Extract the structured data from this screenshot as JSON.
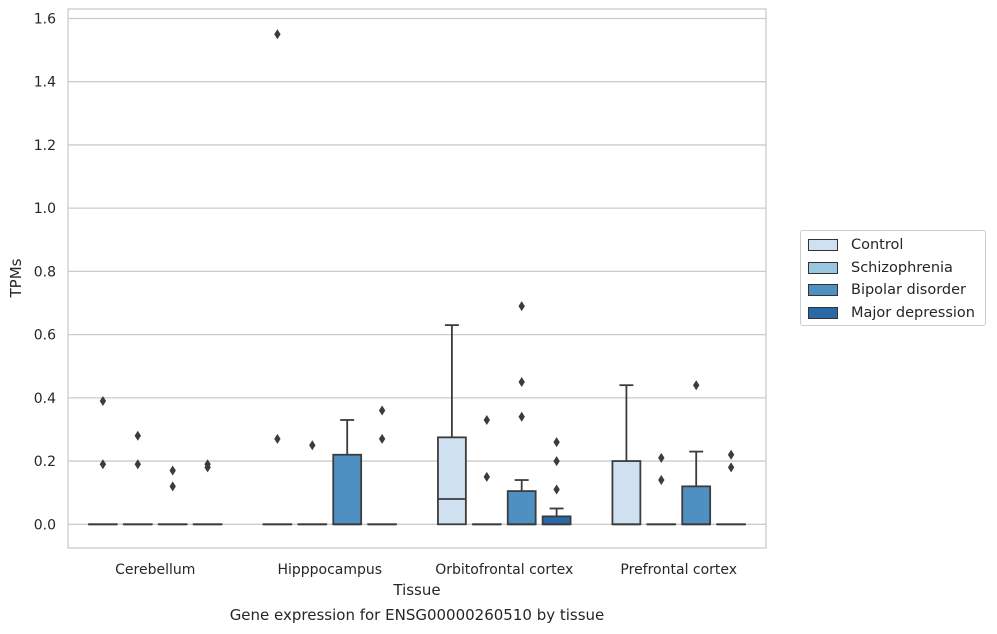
{
  "chart_data": {
    "type": "box",
    "title": "",
    "caption": "Gene expression for ENSG00000260510 by tissue",
    "xlabel": "Tissue",
    "ylabel": "TPMs",
    "ylim": [
      -0.075,
      1.63
    ],
    "yticks": [
      0.0,
      0.2,
      0.4,
      0.6,
      0.8,
      1.0,
      1.2,
      1.4,
      1.6
    ],
    "ytick_labels": [
      "0.0",
      "0.2",
      "0.4",
      "0.6",
      "0.8",
      "1.0",
      "1.2",
      "1.4",
      "1.6"
    ],
    "grid": "horizontal",
    "legend_position": "right",
    "categories": [
      "Cerebellum",
      "Hipppocampus",
      "Orbitofrontal cortex",
      "Prefrontal cortex"
    ],
    "series": [
      {
        "name": "Control",
        "color": "#cfe0f1",
        "boxes": [
          {
            "category": "Cerebellum",
            "whislo": 0,
            "q1": 0,
            "median": 0,
            "q3": 0,
            "whishi": 0,
            "fliers": [
              0.39,
              0.19
            ]
          },
          {
            "category": "Hipppocampus",
            "whislo": 0,
            "q1": 0,
            "median": 0,
            "q3": 0,
            "whishi": 0,
            "fliers": [
              0.27,
              1.55
            ]
          },
          {
            "category": "Orbitofrontal cortex",
            "whislo": 0,
            "q1": 0,
            "median": 0.08,
            "q3": 0.275,
            "whishi": 0.63,
            "fliers": []
          },
          {
            "category": "Prefrontal cortex",
            "whislo": 0,
            "q1": 0,
            "median": 0,
            "q3": 0.2,
            "whishi": 0.44,
            "fliers": []
          }
        ]
      },
      {
        "name": "Schizophrenia",
        "color": "#9ac7e0",
        "boxes": [
          {
            "category": "Cerebellum",
            "whislo": 0,
            "q1": 0,
            "median": 0,
            "q3": 0,
            "whishi": 0,
            "fliers": [
              0.28,
              0.19
            ]
          },
          {
            "category": "Hipppocampus",
            "whislo": 0,
            "q1": 0,
            "median": 0,
            "q3": 0,
            "whishi": 0,
            "fliers": [
              0.25
            ]
          },
          {
            "category": "Orbitofrontal cortex",
            "whislo": 0,
            "q1": 0,
            "median": 0,
            "q3": 0,
            "whishi": 0,
            "fliers": [
              0.33,
              0.15
            ]
          },
          {
            "category": "Prefrontal cortex",
            "whislo": 0,
            "q1": 0,
            "median": 0,
            "q3": 0,
            "whishi": 0,
            "fliers": [
              0.21,
              0.14
            ]
          }
        ]
      },
      {
        "name": "Bipolar disorder",
        "color": "#4f90c2",
        "boxes": [
          {
            "category": "Cerebellum",
            "whislo": 0,
            "q1": 0,
            "median": 0,
            "q3": 0,
            "whishi": 0,
            "fliers": [
              0.17,
              0.12
            ]
          },
          {
            "category": "Hipppocampus",
            "whislo": 0,
            "q1": 0,
            "median": 0,
            "q3": 0.22,
            "whishi": 0.33,
            "fliers": []
          },
          {
            "category": "Orbitofrontal cortex",
            "whislo": 0,
            "q1": 0,
            "median": 0,
            "q3": 0.105,
            "whishi": 0.14,
            "fliers": [
              0.69,
              0.45,
              0.34
            ]
          },
          {
            "category": "Prefrontal cortex",
            "whislo": 0,
            "q1": 0,
            "median": 0,
            "q3": 0.12,
            "whishi": 0.23,
            "fliers": [
              0.44
            ]
          }
        ]
      },
      {
        "name": "Major depression",
        "color": "#2a69a8",
        "boxes": [
          {
            "category": "Cerebellum",
            "whislo": 0,
            "q1": 0,
            "median": 0,
            "q3": 0,
            "whishi": 0,
            "fliers": [
              0.19,
              0.18
            ]
          },
          {
            "category": "Hipppocampus",
            "whislo": 0,
            "q1": 0,
            "median": 0,
            "q3": 0,
            "whishi": 0,
            "fliers": [
              0.36,
              0.27
            ]
          },
          {
            "category": "Orbitofrontal cortex",
            "whislo": 0,
            "q1": 0,
            "median": 0,
            "q3": 0.025,
            "whishi": 0.05,
            "fliers": [
              0.26,
              0.2,
              0.11
            ]
          },
          {
            "category": "Prefrontal cortex",
            "whislo": 0,
            "q1": 0,
            "median": 0,
            "q3": 0,
            "whishi": 0,
            "fliers": [
              0.22,
              0.18
            ]
          }
        ]
      }
    ]
  }
}
